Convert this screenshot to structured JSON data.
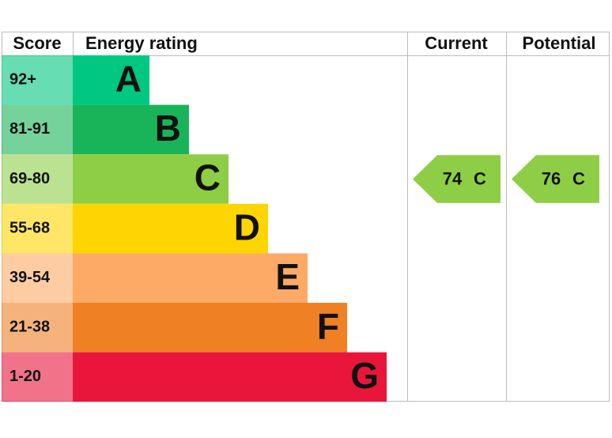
{
  "header": {
    "score": "Score",
    "rating": "Energy rating",
    "current": "Current",
    "potential": "Potential"
  },
  "bands": [
    {
      "score": "92+",
      "letter": "A",
      "color": "#00c781"
    },
    {
      "score": "81-91",
      "letter": "B",
      "color": "#19b459"
    },
    {
      "score": "69-80",
      "letter": "C",
      "color": "#8dce46"
    },
    {
      "score": "55-68",
      "letter": "D",
      "color": "#ffd500"
    },
    {
      "score": "39-54",
      "letter": "E",
      "color": "#fcaa65"
    },
    {
      "score": "21-38",
      "letter": "F",
      "color": "#ef8023"
    },
    {
      "score": "1-20",
      "letter": "G",
      "color": "#e9153b"
    }
  ],
  "current": {
    "score": 74,
    "rating": "C"
  },
  "potential": {
    "score": 76,
    "rating": "C"
  }
}
